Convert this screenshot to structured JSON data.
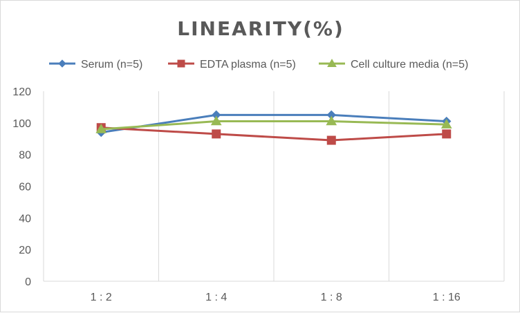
{
  "chart_data": {
    "type": "line",
    "title": "LINEARITY(%)",
    "xlabel": "",
    "ylabel": "",
    "categories": [
      "1:2",
      "1:4",
      "1:8",
      "1:16"
    ],
    "ylim": [
      0,
      120
    ],
    "yticks": [
      0,
      20,
      40,
      60,
      80,
      100,
      120
    ],
    "grid": "vertical",
    "legend": "top",
    "series": [
      {
        "name": "Serum (n=5)",
        "values": [
          94,
          105,
          105,
          101
        ],
        "color": "#4a7ebb",
        "marker": "diamond"
      },
      {
        "name": "EDTA plasma (n=5)",
        "values": [
          97,
          93,
          89,
          93
        ],
        "color": "#be4b48",
        "marker": "square"
      },
      {
        "name": "Cell culture media (n=5)",
        "values": [
          96,
          101,
          101,
          99
        ],
        "color": "#98b954",
        "marker": "triangle"
      }
    ]
  }
}
